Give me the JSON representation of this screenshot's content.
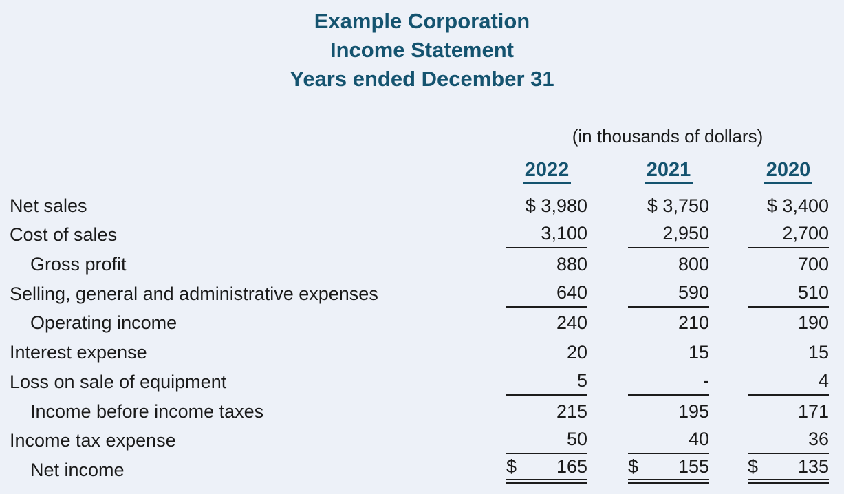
{
  "title": {
    "line1": "Example Corporation",
    "line2": "Income Statement",
    "line3": "Years ended December 31"
  },
  "note": "(in thousands of dollars)",
  "columns": {
    "years": [
      "2022",
      "2021",
      "2020"
    ]
  },
  "colors": {
    "heading": "#14536f",
    "background": "#edf1f8",
    "body_text": "#1a1a1a"
  },
  "statement": {
    "rows": [
      {
        "label": "Net sales",
        "values": [
          "$ 3,980",
          "$ 3,750",
          "$ 3,400"
        ],
        "underline": "none"
      },
      {
        "label": "Cost of sales",
        "values": [
          "3,100",
          "2,950",
          "2,700"
        ],
        "underline": "single"
      },
      {
        "label": "Gross profit",
        "indent": true,
        "values": [
          "880",
          "800",
          "700"
        ],
        "underline": "none"
      },
      {
        "label": "Selling, general and administrative expenses",
        "values": [
          "640",
          "590",
          "510"
        ],
        "underline": "single"
      },
      {
        "label": "Operating income",
        "indent": true,
        "values": [
          "240",
          "210",
          "190"
        ],
        "underline": "none"
      },
      {
        "label": "Interest expense",
        "values": [
          "20",
          "15",
          "15"
        ],
        "underline": "none"
      },
      {
        "label": "Loss on sale of equipment",
        "values": [
          "5",
          "-",
          "4"
        ],
        "underline": "single"
      },
      {
        "label": "Income before income taxes",
        "indent": true,
        "values": [
          "215",
          "195",
          "171"
        ],
        "underline": "none"
      },
      {
        "label": "Income tax expense",
        "values": [
          "50",
          "40",
          "36"
        ],
        "underline": "single"
      },
      {
        "label": "Net income",
        "indent": true,
        "currency": "$",
        "values": [
          "165",
          "155",
          "135"
        ],
        "underline": "double"
      }
    ]
  }
}
